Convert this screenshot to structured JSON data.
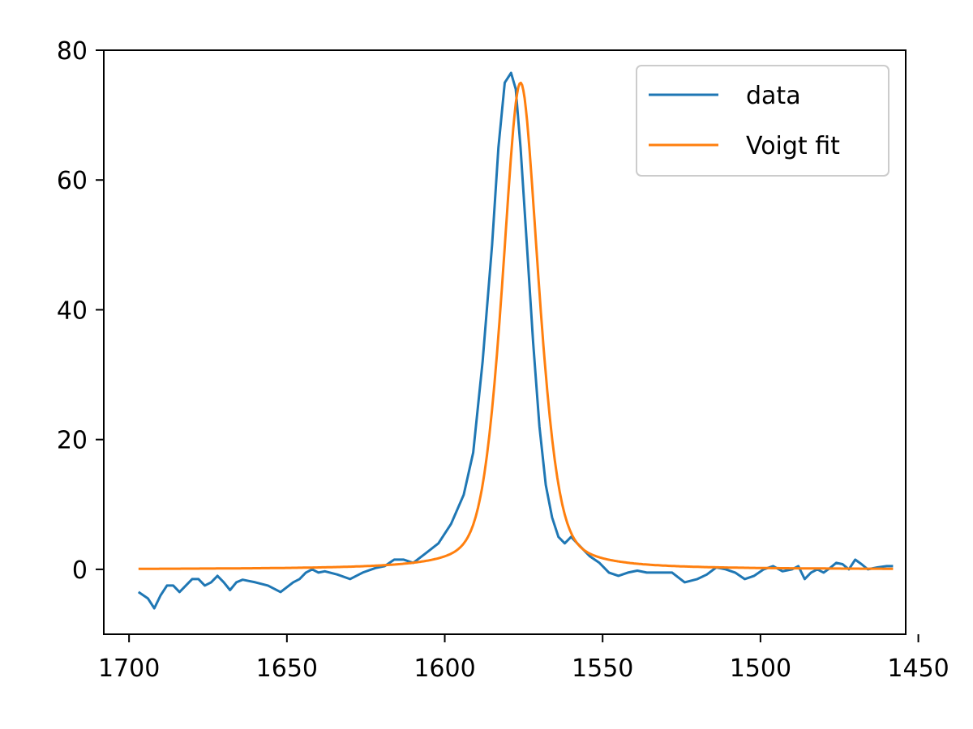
{
  "chart_data": {
    "type": "line",
    "title": "",
    "xlabel": "",
    "ylabel": "",
    "xlim": [
      1708,
      1454
    ],
    "ylim": [
      -10,
      80
    ],
    "x_reversed": true,
    "grid": false,
    "legend_position": "top-right",
    "xticks": [
      1700,
      1650,
      1600,
      1550,
      1500,
      1450
    ],
    "yticks": [
      0,
      20,
      40,
      60,
      80
    ],
    "xtick_labels": [
      "1700",
      "1650",
      "1600",
      "1550",
      "1500",
      "1450"
    ],
    "ytick_labels": [
      "0",
      "20",
      "40",
      "60",
      "80"
    ],
    "series": [
      {
        "name": "data",
        "color": "#1f77b4",
        "x": [
          1697,
          1694,
          1692,
          1690,
          1688,
          1686,
          1684,
          1682,
          1680,
          1678,
          1676,
          1674,
          1672,
          1670,
          1668,
          1666,
          1664,
          1662,
          1660,
          1656,
          1652,
          1648,
          1646,
          1644,
          1642,
          1640,
          1638,
          1634,
          1630,
          1626,
          1622,
          1619,
          1616,
          1613,
          1610,
          1606,
          1602,
          1598,
          1594,
          1591,
          1588,
          1585,
          1583,
          1581,
          1579,
          1577.5,
          1576,
          1574,
          1572,
          1570,
          1568,
          1566,
          1564,
          1562,
          1560,
          1557,
          1554,
          1551,
          1548,
          1545,
          1542,
          1539,
          1536,
          1532,
          1528,
          1524,
          1520,
          1517,
          1514,
          1511,
          1508,
          1505,
          1502,
          1499,
          1496,
          1493,
          1490,
          1488,
          1486,
          1484,
          1482,
          1480,
          1478,
          1476,
          1474,
          1472,
          1470,
          1468,
          1466,
          1463,
          1460,
          1458
        ],
        "y": [
          -3.5,
          -4.5,
          -6,
          -4,
          -2.5,
          -2.5,
          -3.5,
          -2.5,
          -1.5,
          -1.5,
          -2.5,
          -2,
          -1,
          -2,
          -3.2,
          -2,
          -1.6,
          -1.8,
          -2,
          -2.5,
          -3.5,
          -2,
          -1.5,
          -0.5,
          0,
          -0.5,
          -0.3,
          -0.8,
          -1.5,
          -0.5,
          0.2,
          0.5,
          1.5,
          1.5,
          1,
          2.5,
          4,
          7,
          11.5,
          18,
          32,
          50,
          65,
          75,
          76.5,
          74,
          65,
          50,
          35,
          22,
          13,
          8,
          5,
          4,
          5,
          3.5,
          2,
          1,
          -0.5,
          -1,
          -0.5,
          -0.2,
          -0.5,
          -0.5,
          -0.5,
          -2,
          -1.5,
          -0.8,
          0.3,
          0,
          -0.5,
          -1.5,
          -1,
          0,
          0.5,
          -0.3,
          0,
          0.5,
          -1.5,
          -0.5,
          0,
          -0.5,
          0.2,
          1,
          0.8,
          0,
          1.5,
          0.8,
          0,
          0.3,
          0.5,
          0.5
        ]
      },
      {
        "name": "Voigt fit",
        "color": "#ff7f0e",
        "model": "voigt",
        "center": 1576,
        "amplitude": 75,
        "x_range": [
          1697,
          1458
        ]
      }
    ]
  }
}
